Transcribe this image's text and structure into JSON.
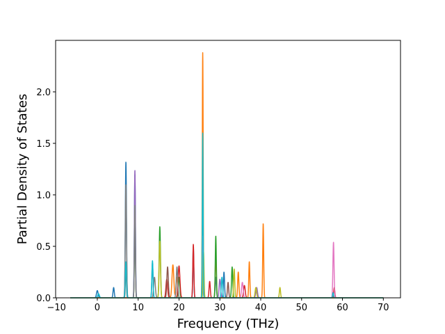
{
  "chart_data": {
    "type": "line",
    "title": "",
    "xlabel": "Frequency (THz)",
    "ylabel": "Partial Density of States",
    "xlim": [
      -10.2,
      74.2
    ],
    "ylim": [
      0.0,
      2.5
    ],
    "xticks": [
      -10,
      0,
      10,
      20,
      30,
      40,
      50,
      60,
      70
    ],
    "xtick_labels": [
      "−10",
      "0",
      "10",
      "20",
      "30",
      "40",
      "50",
      "60",
      "70"
    ],
    "yticks": [
      0.0,
      0.5,
      1.0,
      1.5,
      2.0
    ],
    "ytick_labels": [
      "0.0",
      "0.5",
      "1.0",
      "1.5",
      "2.0"
    ],
    "x_range": [
      -6.6,
      70.0
    ],
    "grid": false,
    "legend": "none",
    "series": [
      {
        "color": "#1f77b4",
        "peaks": [
          [
            7.0,
            1.32,
            0.14
          ],
          [
            9.2,
            1.2,
            0.13
          ],
          [
            13.5,
            0.34,
            0.14
          ],
          [
            23.5,
            0.5,
            0.12
          ],
          [
            25.8,
            1.5,
            0.1
          ],
          [
            29.0,
            0.2,
            0.15
          ],
          [
            31.0,
            0.25,
            0.14
          ],
          [
            0.0,
            0.07,
            0.2
          ],
          [
            4.0,
            0.1,
            0.15
          ]
        ]
      },
      {
        "color": "#ff7f0e",
        "peaks": [
          [
            25.8,
            2.38,
            0.11
          ],
          [
            18.5,
            0.32,
            0.22
          ],
          [
            29.0,
            0.42,
            0.14
          ],
          [
            34.5,
            0.25,
            0.15
          ],
          [
            37.2,
            0.35,
            0.13
          ],
          [
            40.6,
            0.72,
            0.12
          ],
          [
            19.5,
            0.2,
            0.2
          ]
        ]
      },
      {
        "color": "#2ca02c",
        "peaks": [
          [
            15.3,
            0.69,
            0.16
          ],
          [
            29.0,
            0.6,
            0.13
          ],
          [
            9.2,
            0.85,
            0.12
          ],
          [
            33.0,
            0.3,
            0.15
          ],
          [
            20.0,
            0.2,
            0.18
          ]
        ]
      },
      {
        "color": "#d62728",
        "peaks": [
          [
            20.0,
            0.31,
            0.22
          ],
          [
            23.5,
            0.52,
            0.13
          ],
          [
            27.5,
            0.16,
            0.15
          ],
          [
            36.0,
            0.12,
            0.2
          ],
          [
            58.0,
            0.1,
            0.13
          ],
          [
            17.0,
            0.18,
            0.2
          ]
        ]
      },
      {
        "color": "#9467bd",
        "peaks": [
          [
            9.2,
            1.24,
            0.12
          ],
          [
            25.8,
            0.92,
            0.1
          ],
          [
            30.0,
            0.18,
            0.18
          ],
          [
            39.0,
            0.1,
            0.2
          ]
        ]
      },
      {
        "color": "#8c564b",
        "peaks": [
          [
            17.2,
            0.3,
            0.18
          ],
          [
            25.8,
            0.8,
            0.1
          ],
          [
            7.0,
            0.3,
            0.12
          ],
          [
            32.0,
            0.15,
            0.15
          ]
        ]
      },
      {
        "color": "#e377c2",
        "peaks": [
          [
            57.8,
            0.54,
            0.14
          ],
          [
            25.8,
            0.6,
            0.1
          ],
          [
            35.5,
            0.15,
            0.2
          ]
        ]
      },
      {
        "color": "#7f7f7f",
        "peaks": [
          [
            7.0,
            1.1,
            0.14
          ],
          [
            9.2,
            0.9,
            0.12
          ],
          [
            19.5,
            0.3,
            0.18
          ],
          [
            14.0,
            0.2,
            0.2
          ]
        ]
      },
      {
        "color": "#bcbd22",
        "peaks": [
          [
            15.3,
            0.55,
            0.16
          ],
          [
            26.0,
            0.45,
            0.12
          ],
          [
            33.5,
            0.28,
            0.14
          ],
          [
            44.7,
            0.1,
            0.14
          ],
          [
            38.8,
            0.1,
            0.18
          ]
        ]
      },
      {
        "color": "#17becf",
        "peaks": [
          [
            25.8,
            1.6,
            0.1
          ],
          [
            13.5,
            0.36,
            0.14
          ],
          [
            7.0,
            0.35,
            0.14
          ],
          [
            30.5,
            0.2,
            0.16
          ],
          [
            57.7,
            0.05,
            0.12
          ],
          [
            0.3,
            0.04,
            0.2
          ]
        ]
      }
    ]
  }
}
